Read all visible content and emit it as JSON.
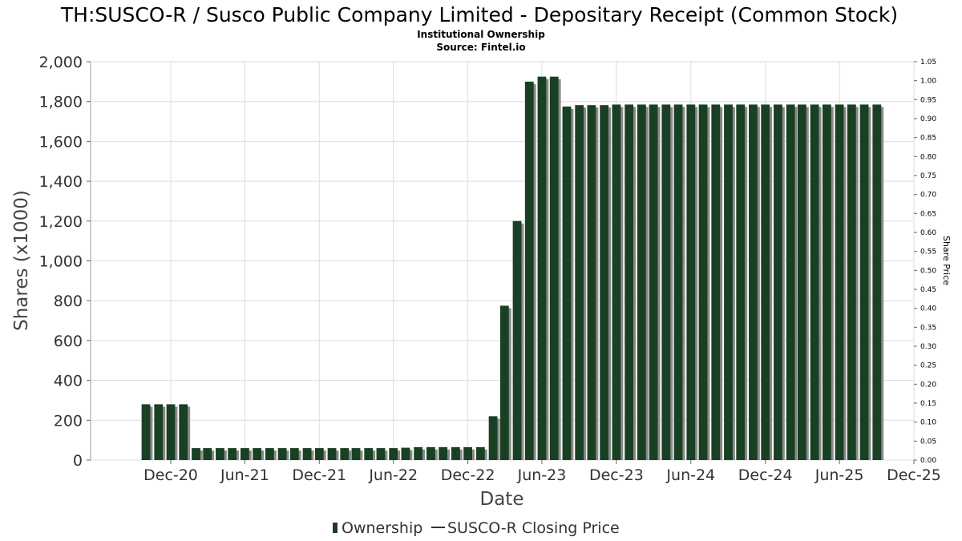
{
  "chart_data": {
    "type": "bar",
    "title": "TH:SUSCO-R / Susco Public Company Limited - Depositary Receipt (Common Stock)",
    "subtitle_lines": [
      "Institutional Ownership",
      "Source: Fintel.io"
    ],
    "xlabel": "Date",
    "ylabel": "Shares (x1000)",
    "ylabel_right": "Share Price",
    "ylim": [
      0,
      2000
    ],
    "ylim_right": [
      0,
      1.05
    ],
    "yticks": [
      "0",
      "200",
      "400",
      "600",
      "800",
      "1,000",
      "1,200",
      "1,400",
      "1,600",
      "1,800",
      "2,000"
    ],
    "yticks_right": [
      "0.00",
      "0.05",
      "0.10",
      "0.15",
      "0.20",
      "0.25",
      "0.30",
      "0.35",
      "0.40",
      "0.45",
      "0.50",
      "0.55",
      "0.60",
      "0.65",
      "0.70",
      "0.75",
      "0.80",
      "0.85",
      "0.90",
      "0.95",
      "1.00",
      "1.05"
    ],
    "xticks": [
      "Dec-20",
      "Jun-21",
      "Dec-21",
      "Jun-22",
      "Dec-22",
      "Jun-23",
      "Dec-23",
      "Jun-24",
      "Dec-24",
      "Jun-25",
      "Dec-25"
    ],
    "x_range": [
      "2020-06-01",
      "2025-12-15"
    ],
    "grid": true,
    "legend_position": "bottom",
    "series": [
      {
        "name": "Ownership",
        "color": "#1a4024",
        "dates": [
          "2020-10-15",
          "2020-11-15",
          "2020-12-15",
          "2021-01-15",
          "2021-02-15",
          "2021-03-15",
          "2021-04-15",
          "2021-05-15",
          "2021-06-15",
          "2021-07-15",
          "2021-08-15",
          "2021-09-15",
          "2021-10-15",
          "2021-11-15",
          "2021-12-15",
          "2022-01-15",
          "2022-02-15",
          "2022-03-15",
          "2022-04-15",
          "2022-05-15",
          "2022-06-15",
          "2022-07-15",
          "2022-08-15",
          "2022-09-15",
          "2022-10-15",
          "2022-11-15",
          "2022-12-15",
          "2023-01-15",
          "2023-02-15",
          "2023-03-15",
          "2023-04-15",
          "2023-05-15",
          "2023-06-15",
          "2023-07-15",
          "2023-08-15",
          "2023-09-15",
          "2023-10-15",
          "2023-11-15",
          "2023-12-15",
          "2024-01-15",
          "2024-02-15",
          "2024-03-15",
          "2024-04-15",
          "2024-05-15",
          "2024-06-15",
          "2024-07-15",
          "2024-08-15",
          "2024-09-15",
          "2024-10-15",
          "2024-11-15",
          "2024-12-15",
          "2025-01-15",
          "2025-02-15",
          "2025-03-15",
          "2025-04-15",
          "2025-05-15",
          "2025-06-15",
          "2025-07-15",
          "2025-08-15",
          "2025-09-15"
        ],
        "values": [
          280,
          280,
          280,
          280,
          60,
          60,
          60,
          60,
          60,
          60,
          60,
          60,
          60,
          60,
          60,
          60,
          60,
          60,
          60,
          60,
          60,
          62,
          65,
          65,
          65,
          65,
          65,
          65,
          220,
          775,
          1200,
          1900,
          1925,
          1925,
          1775,
          1782,
          1782,
          1782,
          1785,
          1785,
          1785,
          1785,
          1785,
          1785,
          1785,
          1785,
          1785,
          1785,
          1785,
          1785,
          1785,
          1785,
          1785,
          1785,
          1785,
          1785,
          1785,
          1785,
          1785,
          1785
        ]
      },
      {
        "name": "SUSCO-R Closing Price",
        "color": "#333333",
        "values": []
      }
    ]
  }
}
